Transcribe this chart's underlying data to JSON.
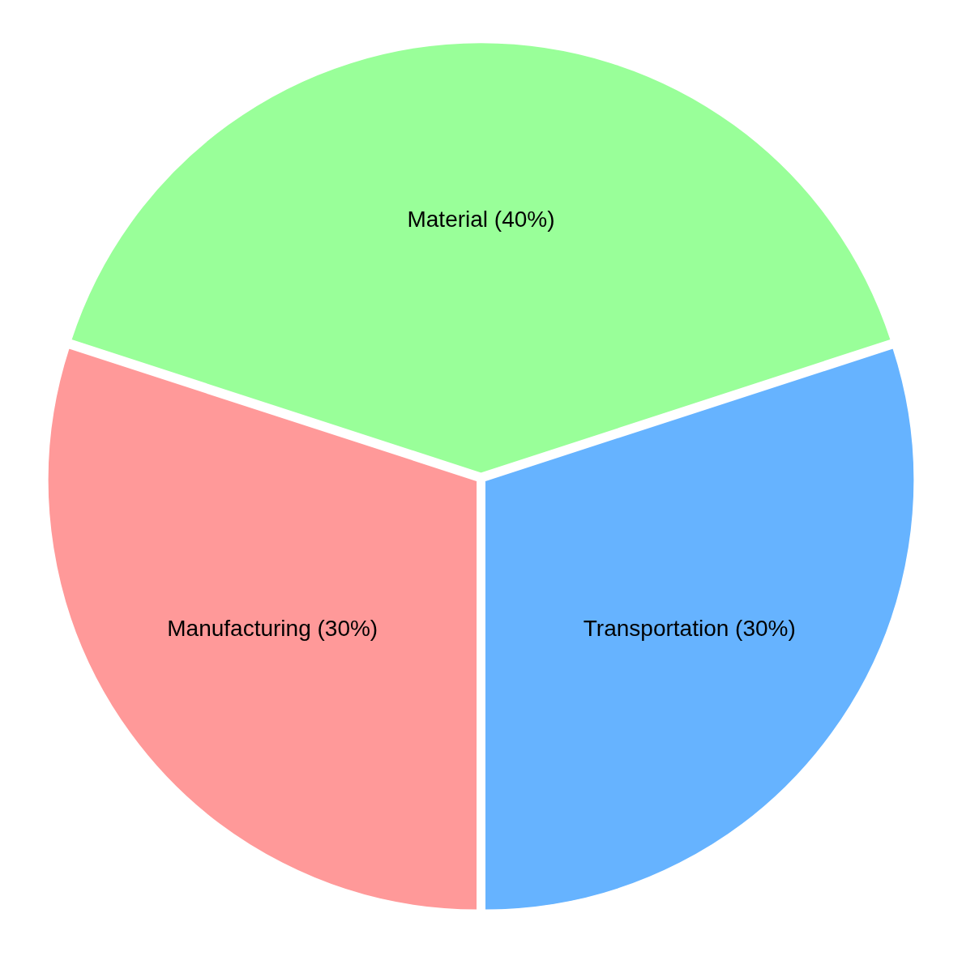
{
  "chart_data": {
    "type": "pie",
    "categories": [
      "Material",
      "Transportation",
      "Manufacturing"
    ],
    "values": [
      40,
      30,
      30
    ],
    "value_labels": [
      "(40%)",
      "(30%)",
      "(30%)"
    ],
    "colors": [
      "#99ff99",
      "#66b3ff",
      "#ff9999"
    ],
    "legend": false
  }
}
